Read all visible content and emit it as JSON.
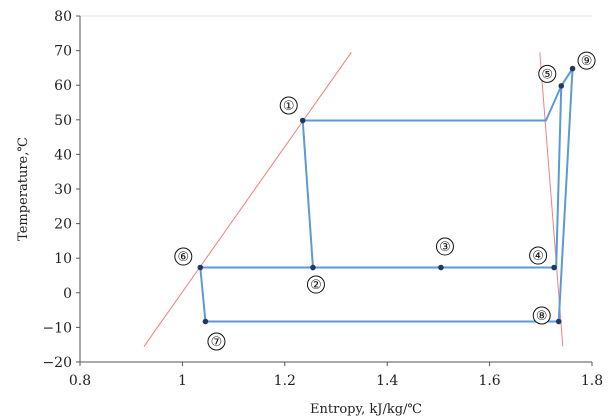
{
  "chart_data": {
    "type": "line",
    "title": "",
    "xlabel": "Entropy, kJ/kg/℃",
    "ylabel": "Temperature,℃",
    "xlim": [
      0.8,
      1.8
    ],
    "ylim": [
      -20,
      80
    ],
    "xticks": [
      "0.8",
      "1",
      "1.2",
      "1.4",
      "1.6",
      "1.8"
    ],
    "xtick_values": [
      0.8,
      1.0,
      1.2,
      1.4,
      1.6,
      1.8
    ],
    "yticks": [
      "−20",
      "−10",
      "0",
      "10",
      "20",
      "30",
      "40",
      "50",
      "60",
      "70",
      "80"
    ],
    "ytick_values": [
      -20,
      -10,
      0,
      10,
      20,
      30,
      40,
      50,
      60,
      70,
      80
    ],
    "grid": false,
    "legend": "none",
    "colors": {
      "cycle": "#5b9bd5",
      "saturation": "#f08080",
      "marker": "#1f3864"
    },
    "cycle_path": [
      {
        "x": 1.235,
        "y": 49.8
      },
      {
        "x": 1.255,
        "y": 7.3
      },
      {
        "x": 1.035,
        "y": 7.3
      },
      {
        "x": 1.045,
        "y": -8.3
      },
      {
        "x": 1.735,
        "y": -8.3
      },
      {
        "x": 1.762,
        "y": 64.8
      },
      {
        "x": 1.74,
        "y": 59.8
      },
      {
        "x": 1.73,
        "y": 7.3
      },
      {
        "x": 1.255,
        "y": 7.3
      }
    ],
    "top_path": [
      {
        "x": 1.235,
        "y": 49.8
      },
      {
        "x": 1.71,
        "y": 49.8
      },
      {
        "x": 1.74,
        "y": 59.8
      }
    ],
    "saturated_liquid_line": [
      {
        "x": 0.925,
        "y": -15.5
      },
      {
        "x": 1.33,
        "y": 69.5
      }
    ],
    "saturated_vapor_line": [
      {
        "x": 1.698,
        "y": 69.5
      },
      {
        "x": 1.743,
        "y": -15.5
      }
    ],
    "points": [
      {
        "label": "①",
        "x": 1.235,
        "y": 49.8
      },
      {
        "label": "②",
        "x": 1.255,
        "y": 7.3
      },
      {
        "label": "③",
        "x": 1.505,
        "y": 7.3
      },
      {
        "label": "④",
        "x": 1.726,
        "y": 7.3
      },
      {
        "label": "⑤",
        "x": 1.74,
        "y": 59.8
      },
      {
        "label": "⑥",
        "x": 1.035,
        "y": 7.3
      },
      {
        "label": "⑦",
        "x": 1.045,
        "y": -8.3
      },
      {
        "label": "⑧",
        "x": 1.735,
        "y": -8.3
      },
      {
        "label": "⑨",
        "x": 1.762,
        "y": 64.8
      }
    ]
  }
}
